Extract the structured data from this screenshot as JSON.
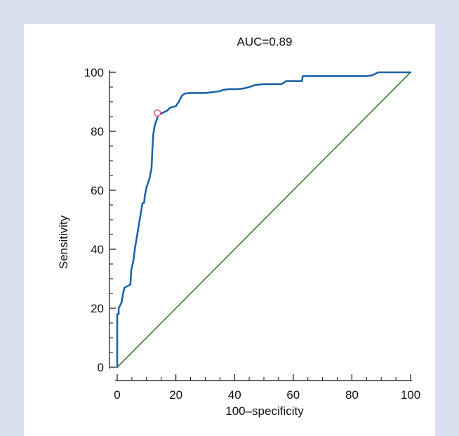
{
  "chart_data": {
    "type": "line",
    "title": "AUC=0.89",
    "xlabel": "100–specificity",
    "ylabel": "Sensitivity",
    "xlim": [
      0,
      100
    ],
    "ylim": [
      0,
      100
    ],
    "x_ticks": [
      0,
      20,
      40,
      60,
      80,
      100
    ],
    "y_ticks": [
      0,
      20,
      40,
      60,
      80,
      100
    ],
    "x_tick_labels": [
      "0",
      "20",
      "40",
      "60",
      "80",
      "100"
    ],
    "y_tick_labels": [
      "0",
      "20",
      "40",
      "60",
      "80",
      "100"
    ],
    "grid": false,
    "series": [
      {
        "color": "#1f64a6",
        "points": [
          [
            0,
            0
          ],
          [
            0,
            18
          ],
          [
            0.5,
            18
          ],
          [
            0.5,
            20
          ],
          [
            1,
            21
          ],
          [
            1.5,
            22
          ],
          [
            2,
            25
          ],
          [
            2.5,
            27
          ],
          [
            3.5,
            27.5
          ],
          [
            4.5,
            28
          ],
          [
            4.8,
            33
          ],
          [
            5.5,
            36
          ],
          [
            6,
            40
          ],
          [
            7,
            46
          ],
          [
            8,
            52
          ],
          [
            8.6,
            55.6
          ],
          [
            9.2,
            55.8
          ],
          [
            9.4,
            58
          ],
          [
            10,
            61
          ],
          [
            11,
            64
          ],
          [
            11.7,
            67.4
          ],
          [
            12,
            74
          ],
          [
            12.3,
            79
          ],
          [
            12.8,
            82
          ],
          [
            13.5,
            84
          ],
          [
            14,
            85.5
          ],
          [
            15,
            86
          ],
          [
            16,
            86.5
          ],
          [
            17,
            87
          ],
          [
            18,
            88
          ],
          [
            20,
            88.5
          ],
          [
            21,
            90
          ],
          [
            22,
            92
          ],
          [
            23,
            92.8
          ],
          [
            25,
            93
          ],
          [
            28,
            93
          ],
          [
            30,
            93
          ],
          [
            32,
            93.2
          ],
          [
            35,
            93.6
          ],
          [
            36,
            94
          ],
          [
            38,
            94.3
          ],
          [
            41,
            94.3
          ],
          [
            43,
            94.5
          ],
          [
            45,
            95
          ],
          [
            47,
            95.7
          ],
          [
            50,
            96
          ],
          [
            53,
            96
          ],
          [
            56,
            96
          ],
          [
            57,
            96.6
          ],
          [
            57.5,
            97
          ],
          [
            61,
            97
          ],
          [
            63,
            97
          ],
          [
            63.2,
            98.7
          ],
          [
            66,
            98.7
          ],
          [
            70,
            98.7
          ],
          [
            75,
            98.7
          ],
          [
            80,
            98.7
          ],
          [
            85,
            98.7
          ],
          [
            87,
            99
          ],
          [
            89,
            100
          ],
          [
            95,
            100
          ],
          [
            100,
            100
          ]
        ]
      },
      {
        "color": "#3d7a32",
        "points": [
          [
            0,
            0
          ],
          [
            100,
            100
          ]
        ]
      }
    ],
    "annotations": [
      {
        "type": "marker",
        "x": 13.7,
        "y": 86.2,
        "color": "#e0508a"
      }
    ]
  }
}
